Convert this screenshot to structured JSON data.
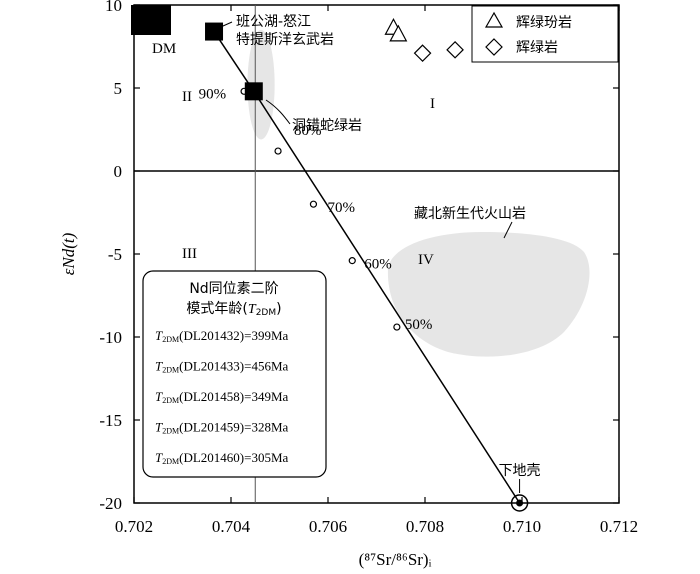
{
  "chart_data": {
    "type": "scatter",
    "xlabel": "(⁸⁷Sr/⁸⁶Sr)ᵢ",
    "ylabel": "εNd(t)",
    "xlim": [
      0.702,
      0.712
    ],
    "ylim": [
      -20,
      10
    ],
    "x_ticks": [
      0.702,
      0.704,
      0.706,
      0.708,
      0.71,
      0.712
    ],
    "x_tick_labels": [
      "0.702",
      "0.704",
      "0.706",
      "0.708",
      "0.710",
      "0.712"
    ],
    "y_ticks": [
      10,
      5,
      0,
      -5,
      -10,
      -15,
      -20
    ],
    "y_tick_labels": [
      "10",
      "5",
      "0",
      "-5",
      "-10",
      "-15",
      "-20"
    ],
    "grid": false,
    "legend_position": "top-right",
    "legend": [
      {
        "label": "辉绿玢岩",
        "marker": "triangle"
      },
      {
        "label": "辉绿岩",
        "marker": "diamond"
      }
    ],
    "series": [
      {
        "name": "辉绿玢岩",
        "marker": "triangle",
        "points": [
          {
            "x": 0.70735,
            "y": 8.6
          },
          {
            "x": 0.70745,
            "y": 8.2
          }
        ]
      },
      {
        "name": "辉绿岩",
        "marker": "diamond",
        "points": [
          {
            "x": 0.70795,
            "y": 7.1
          },
          {
            "x": 0.70862,
            "y": 7.3
          }
        ]
      }
    ],
    "reference_points": [
      {
        "label": "DM",
        "x": 0.70255,
        "y": 9.3,
        "marker": "large-square"
      },
      {
        "label": "班公湖-怒江 特提斯洋玄武岩",
        "x": 0.70365,
        "y": 8.4,
        "marker": "square"
      },
      {
        "label": "洞错蛇绿岩",
        "x": 0.70447,
        "y": 4.8,
        "marker": "square"
      },
      {
        "label": "下地壳",
        "x": 0.70995,
        "y": -20,
        "marker": "circle"
      }
    ],
    "mixing_curve": {
      "start": {
        "x": 0.70447,
        "y": 4.8
      },
      "end": {
        "x": 0.70995,
        "y": -20
      },
      "ticks": [
        {
          "label": "90%",
          "x": 0.70427,
          "y": 4.8
        },
        {
          "label": "80%",
          "x": 0.70497,
          "y": 1.2
        },
        {
          "label": "70%",
          "x": 0.7057,
          "y": -2.0
        },
        {
          "label": "60%",
          "x": 0.7065,
          "y": -5.4
        },
        {
          "label": "50%",
          "x": 0.70742,
          "y": -9.4
        }
      ]
    },
    "reference_lines": {
      "y": 0,
      "x": 0.7045
    },
    "quadrants": [
      {
        "label": "I",
        "x": 0.7076,
        "y": 4.0
      },
      {
        "label": "II",
        "x": 0.7027,
        "y": 4.6
      },
      {
        "label": "III",
        "x": 0.7027,
        "y": -5.0
      },
      {
        "label": "IV",
        "x": 0.7083,
        "y": -5.4
      }
    ],
    "fields": [
      {
        "label": "",
        "shape": "ellipse",
        "cx": 0.70462,
        "cy": 5.2,
        "rx": 0.00028,
        "ry": 3.3
      },
      {
        "label": "藏北新生代火山岩",
        "shape": "blob"
      }
    ],
    "annotation_box": {
      "title_line1": "Nd同位素二阶",
      "title_line2": "模式年龄",
      "title_symbol": "T",
      "title_sub": "2DM",
      "rows": [
        {
          "sym": "T",
          "sub": "2DM",
          "sample": "(DL201432)",
          "value": "=399Ma"
        },
        {
          "sym": "T",
          "sub": "2DM",
          "sample": "(DL201433)",
          "value": "=456Ma"
        },
        {
          "sym": "T",
          "sub": "2DM",
          "sample": "(DL201458)",
          "value": "=349Ma"
        },
        {
          "sym": "T",
          "sub": "2DM",
          "sample": "(DL201459)",
          "value": "=328Ma"
        },
        {
          "sym": "T",
          "sub": "2DM",
          "sample": "(DL201460)",
          "value": "=305Ma"
        }
      ]
    }
  },
  "colors": {
    "axis": "#000000",
    "field_fill": "#e6e6e6",
    "marker_fill": "#000000"
  }
}
